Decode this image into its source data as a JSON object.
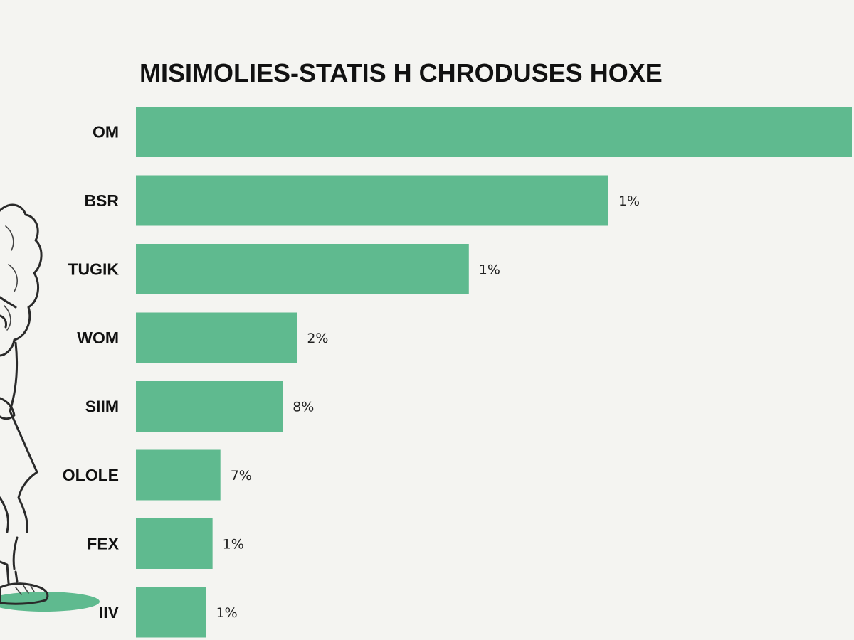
{
  "chart_data": {
    "type": "bar",
    "orientation": "horizontal",
    "title": "MISIMOLIES-STATIS H CHRODUSES HOXE",
    "categories": [
      "OM",
      "BSR",
      "TUGIK",
      "WOM",
      "SIIM",
      "OLOLE",
      "FEX",
      "IIV"
    ],
    "values": [
      100,
      66,
      46.5,
      22.5,
      20.5,
      11.8,
      10.7,
      9.8
    ],
    "data_labels": [
      "",
      "1%",
      "1%",
      "2%",
      "8%",
      "7%",
      "1%",
      "1%"
    ],
    "xlim": [
      0,
      100
    ],
    "grid": false,
    "legend": "none",
    "bar_color": "#5fba8f"
  },
  "illustration": {
    "name": "cartoon-figure",
    "shadow_color": "#5fba8f"
  }
}
